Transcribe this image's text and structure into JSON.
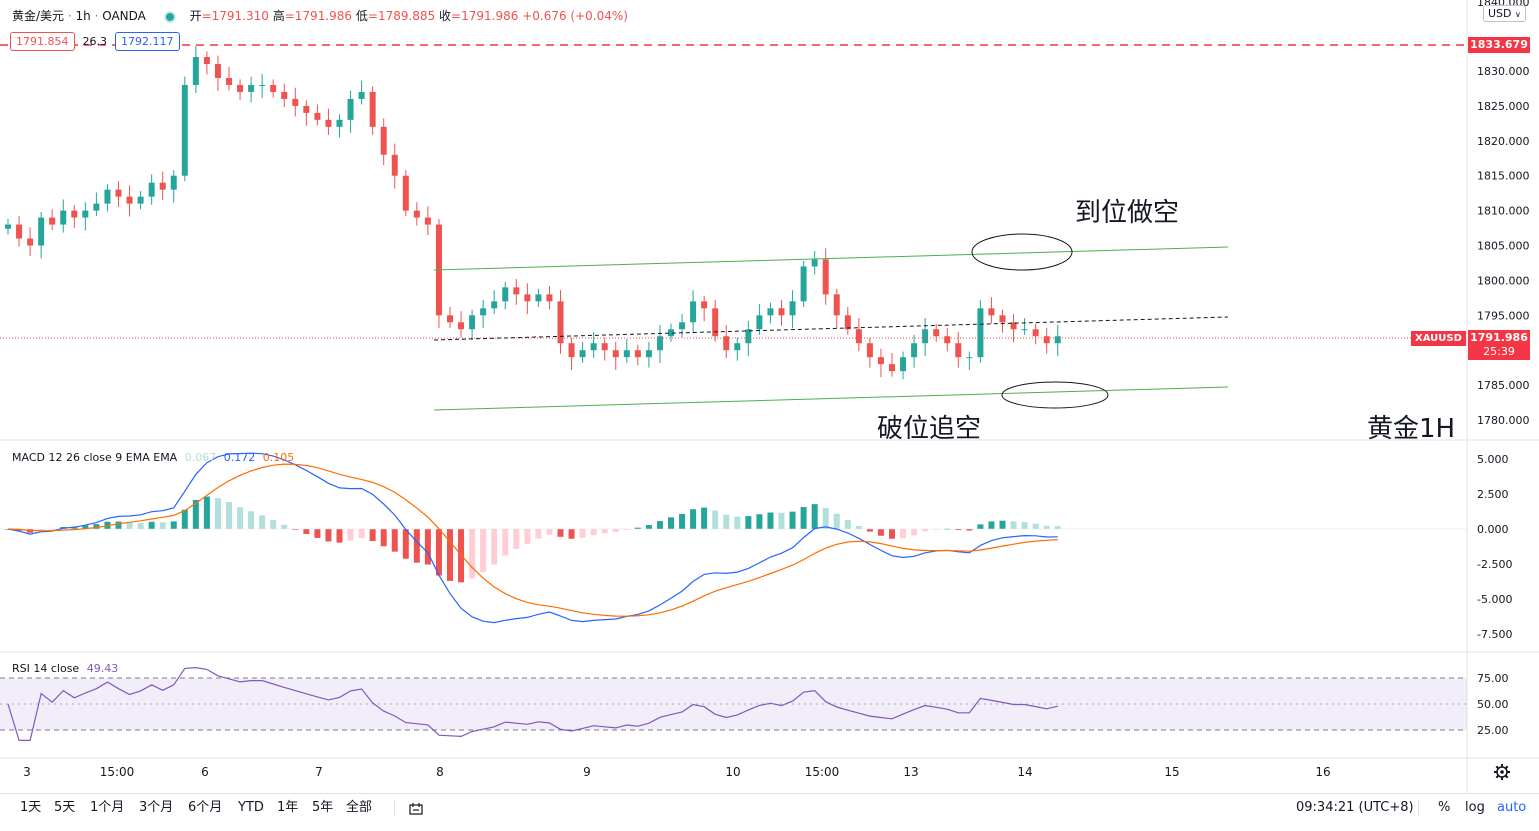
{
  "header": {
    "symbol": "黄金/美元",
    "timeframe": "1h",
    "broker": "OANDA",
    "open_label": "开",
    "open": "=1791.310",
    "high_label": "高",
    "high": "=1791.986",
    "low_label": "低",
    "low": "=1789.885",
    "close_label": "收",
    "close": "=1791.986",
    "change": "+0.676 (+0.04%)",
    "sell_price": "1791.854",
    "spread": "26.3",
    "buy_price": "1792.117"
  },
  "currency_selector": "USD",
  "price_axis": {
    "top_partial": "1840.000",
    "labels": [
      "1830.000",
      "1825.000",
      "1820.000",
      "1815.000",
      "1810.000",
      "1805.000",
      "1800.000",
      "1795.000",
      "1790.000",
      "1785.000",
      "1780.000"
    ],
    "red_level": "1833.679",
    "current_symbol": "XAUUSD",
    "current_price": "1791.986",
    "countdown": "25:39"
  },
  "annotations": {
    "sell_target": "到位做空",
    "break_sell": "破位追空",
    "chart_label": "黄金1H"
  },
  "time_axis": [
    "3",
    "15:00",
    "6",
    "7",
    "8",
    "9",
    "10",
    "15:00",
    "13",
    "14",
    "15",
    "16"
  ],
  "macd": {
    "title": "MACD 12 26 close 9 EMA EMA",
    "hist": "0.067",
    "macd": "0.172",
    "signal": "0.105",
    "axis": [
      "5.000",
      "2.500",
      "0.000",
      "-2.500",
      "-5.000",
      "-7.500"
    ]
  },
  "rsi": {
    "title": "RSI 14 close",
    "value": "49.43",
    "axis": [
      "75.00",
      "50.00",
      "25.00"
    ]
  },
  "bottom_bar": {
    "ranges": [
      "1天",
      "5天",
      "1个月",
      "3个月",
      "6个月",
      "YTD",
      "1年",
      "5年",
      "全部"
    ],
    "time": "09:34:21 (UTC+8)",
    "percent": "%",
    "log": "log",
    "auto": "auto"
  },
  "colors": {
    "up": "#26a69a",
    "down": "#ef5350",
    "macd_line": "#2962ff",
    "signal_line": "#ff6d00",
    "rsi_line": "#7e57c2",
    "channel": "#4caf50"
  },
  "chart_data": {
    "type": "candlestick",
    "symbol": "XAUUSD",
    "y_range": [
      1778,
      1840
    ],
    "close_series_approx": [
      1808,
      1806,
      1805,
      1809,
      1808,
      1810,
      1809,
      1810,
      1811,
      1813,
      1812,
      1811,
      1812,
      1814,
      1813,
      1815,
      1828,
      1832,
      1831,
      1829,
      1828,
      1827,
      1828,
      1828,
      1827,
      1826,
      1825,
      1824,
      1823,
      1822,
      1823,
      1826,
      1827,
      1822,
      1818,
      1815,
      1810,
      1809,
      1808,
      1795,
      1794,
      1793,
      1795,
      1796,
      1797,
      1799,
      1798,
      1797,
      1798,
      1797,
      1791,
      1789,
      1790,
      1791,
      1790,
      1789,
      1790,
      1789,
      1790,
      1792,
      1793,
      1794,
      1797,
      1796,
      1792,
      1790,
      1791,
      1793,
      1795,
      1796,
      1795,
      1797,
      1802,
      1803,
      1798,
      1795,
      1793,
      1791,
      1789,
      1788,
      1787,
      1789,
      1791,
      1793,
      1792,
      1791,
      1789,
      1789,
      1796,
      1795,
      1794,
      1793,
      1793,
      1792,
      1791,
      1792
    ],
    "trendlines": [
      {
        "from": [
          "8",
          1801
        ],
        "to": [
          "15",
          1805
        ]
      },
      {
        "from": [
          "8",
          1791
        ],
        "to": [
          "15",
          1795
        ]
      },
      {
        "from": [
          "8",
          1782
        ],
        "to": [
          "15",
          1785
        ]
      }
    ]
  }
}
